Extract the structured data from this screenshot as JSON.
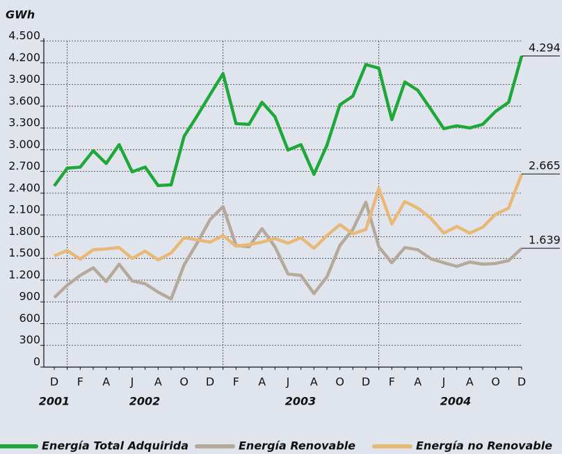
{
  "chart_data": {
    "type": "line",
    "y_label": "GWh",
    "categories": [
      "D",
      null,
      "F",
      null,
      "A",
      null,
      "J",
      null,
      "A",
      null,
      "O",
      null,
      "D",
      null,
      "F",
      null,
      "A",
      null,
      "J",
      null,
      "A",
      null,
      "O",
      null,
      "D",
      null,
      "F",
      null,
      "A",
      null,
      "J",
      null,
      "A",
      null,
      "O",
      null,
      "D"
    ],
    "year_labels": [
      "2001",
      "2002",
      "2003",
      "2004"
    ],
    "ylim": [
      0,
      4500
    ],
    "yticks": [
      0,
      300,
      600,
      900,
      {
        "value": 1200,
        "label": "1.200"
      },
      {
        "value": 1500,
        "label": "1.500"
      },
      {
        "value": 1800,
        "label": "1.800"
      },
      {
        "value": 2100,
        "label": "2.100"
      },
      {
        "value": 2400,
        "label": "2.400"
      },
      {
        "value": 2700,
        "label": "2.700"
      },
      {
        "value": 3000,
        "label": "3.000"
      },
      {
        "value": 3300,
        "label": "3.300"
      },
      {
        "value": 3600,
        "label": "3.600"
      },
      {
        "value": 3900,
        "label": "3.900"
      },
      {
        "value": 4200,
        "label": "4.200"
      },
      {
        "value": 4500,
        "label": "4.500"
      }
    ],
    "grid": true,
    "series": [
      {
        "name": "Energía Total Adquirida",
        "color": "#1fa83a",
        "values": [
          2500,
          2745,
          2760,
          2985,
          2810,
          3070,
          2695,
          2760,
          2505,
          2515,
          3185,
          3465,
          3760,
          4050,
          3360,
          3350,
          3655,
          3455,
          2995,
          3070,
          2660,
          3060,
          3620,
          3740,
          4175,
          4125,
          3415,
          3935,
          3820,
          3560,
          3290,
          3330,
          3300,
          3350,
          3530,
          3655,
          4294
        ],
        "value_labels": [
          null,
          null,
          null,
          null,
          null,
          null,
          null,
          null,
          null,
          null,
          null,
          null,
          null,
          null,
          null,
          null,
          null,
          null,
          null,
          null,
          null,
          null,
          null,
          null,
          null,
          null,
          null,
          null,
          null,
          null,
          null,
          null,
          null,
          null,
          null,
          null,
          "4.294"
        ]
      },
      {
        "name": "Energía Renovable",
        "color": "#b4a99b",
        "values": [
          960,
          1130,
          1265,
          1370,
          1180,
          1420,
          1190,
          1150,
          1035,
          940,
          1410,
          1710,
          2035,
          2215,
          1680,
          1660,
          1910,
          1660,
          1285,
          1265,
          1015,
          1245,
          1680,
          1900,
          2275,
          1660,
          1440,
          1650,
          1620,
          1495,
          1440,
          1390,
          1450,
          1420,
          1430,
          1470,
          1639
        ],
        "value_labels": [
          null,
          null,
          null,
          null,
          null,
          null,
          null,
          null,
          null,
          null,
          null,
          null,
          null,
          null,
          null,
          null,
          null,
          null,
          null,
          null,
          null,
          null,
          null,
          null,
          null,
          null,
          null,
          null,
          null,
          null,
          null,
          null,
          null,
          null,
          null,
          null,
          "1.639"
        ]
      },
      {
        "name": "Energía no Renovable",
        "color": "#e8b877",
        "values": [
          1535,
          1610,
          1490,
          1620,
          1630,
          1650,
          1500,
          1600,
          1480,
          1575,
          1785,
          1755,
          1725,
          1815,
          1670,
          1690,
          1725,
          1775,
          1710,
          1785,
          1640,
          1815,
          1965,
          1840,
          1900,
          2465,
          1975,
          2285,
          2195,
          2055,
          1850,
          1940,
          1850,
          1930,
          2110,
          2195,
          2665
        ],
        "value_labels": [
          null,
          null,
          null,
          null,
          null,
          null,
          null,
          null,
          null,
          null,
          null,
          null,
          null,
          null,
          null,
          null,
          null,
          null,
          null,
          null,
          null,
          null,
          null,
          null,
          null,
          null,
          null,
          null,
          null,
          null,
          null,
          null,
          null,
          null,
          null,
          null,
          "2.665"
        ]
      }
    ]
  }
}
